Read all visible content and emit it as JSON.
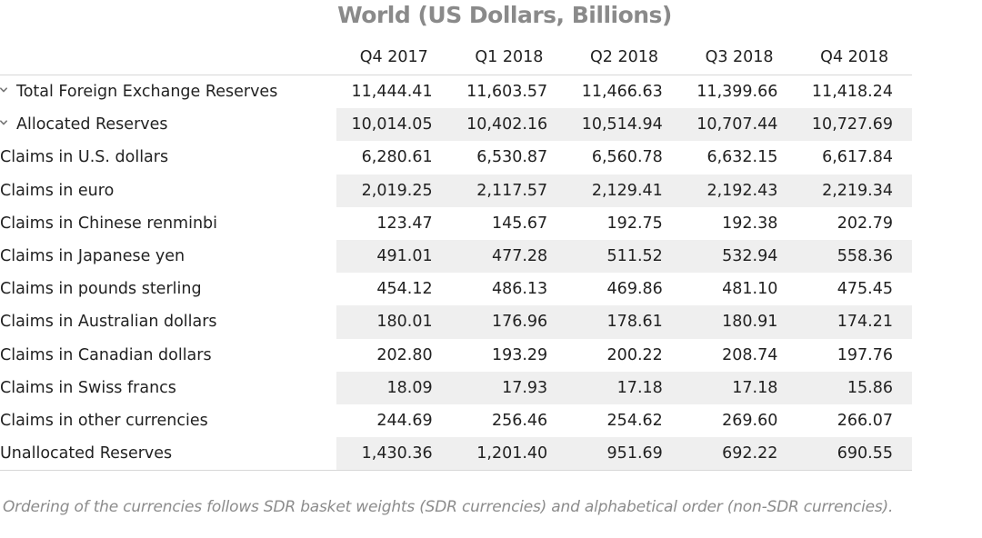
{
  "chart_data": {
    "type": "table",
    "title": "World (US Dollars, Billions)",
    "columns": [
      "Q4 2017",
      "Q1 2018",
      "Q2 2018",
      "Q3 2018",
      "Q4 2018"
    ],
    "rows": [
      {
        "label": "Total Foreign Exchange Reserves",
        "level": 0,
        "expandable": true,
        "values": [
          "11,444.41",
          "11,603.57",
          "11,466.63",
          "11,399.66",
          "11,418.24"
        ]
      },
      {
        "label": "Allocated Reserves",
        "level": 1,
        "expandable": true,
        "values": [
          "10,014.05",
          "10,402.16",
          "10,514.94",
          "10,707.44",
          "10,727.69"
        ]
      },
      {
        "label": "Claims in U.S. dollars",
        "level": 2,
        "expandable": false,
        "values": [
          "6,280.61",
          "6,530.87",
          "6,560.78",
          "6,632.15",
          "6,617.84"
        ]
      },
      {
        "label": "Claims in euro",
        "level": 2,
        "expandable": false,
        "values": [
          "2,019.25",
          "2,117.57",
          "2,129.41",
          "2,192.43",
          "2,219.34"
        ]
      },
      {
        "label": "Claims in Chinese renminbi",
        "level": 2,
        "expandable": false,
        "values": [
          "123.47",
          "145.67",
          "192.75",
          "192.38",
          "202.79"
        ]
      },
      {
        "label": "Claims in Japanese yen",
        "level": 2,
        "expandable": false,
        "values": [
          "491.01",
          "477.28",
          "511.52",
          "532.94",
          "558.36"
        ]
      },
      {
        "label": "Claims in pounds sterling",
        "level": 2,
        "expandable": false,
        "values": [
          "454.12",
          "486.13",
          "469.86",
          "481.10",
          "475.45"
        ]
      },
      {
        "label": "Claims in Australian dollars",
        "level": 2,
        "expandable": false,
        "values": [
          "180.01",
          "176.96",
          "178.61",
          "180.91",
          "174.21"
        ]
      },
      {
        "label": "Claims in Canadian dollars",
        "level": 2,
        "expandable": false,
        "values": [
          "202.80",
          "193.29",
          "200.22",
          "208.74",
          "197.76"
        ]
      },
      {
        "label": "Claims in Swiss francs",
        "level": 2,
        "expandable": false,
        "values": [
          "18.09",
          "17.93",
          "17.18",
          "17.18",
          "15.86"
        ]
      },
      {
        "label": "Claims in other currencies",
        "level": 2,
        "expandable": false,
        "values": [
          "244.69",
          "256.46",
          "254.62",
          "269.60",
          "266.07"
        ]
      },
      {
        "label": "Unallocated Reserves",
        "level": 1,
        "expandable": false,
        "values": [
          "1,430.36",
          "1,201.40",
          "951.69",
          "692.22",
          "690.55"
        ]
      }
    ],
    "footnote": "Ordering of the currencies follows SDR basket weights (SDR currencies) and alphabetical order (non-SDR currencies).",
    "row_shading": "alternating",
    "shade_color": "#efefef",
    "title_color": "#8a8a8a"
  }
}
